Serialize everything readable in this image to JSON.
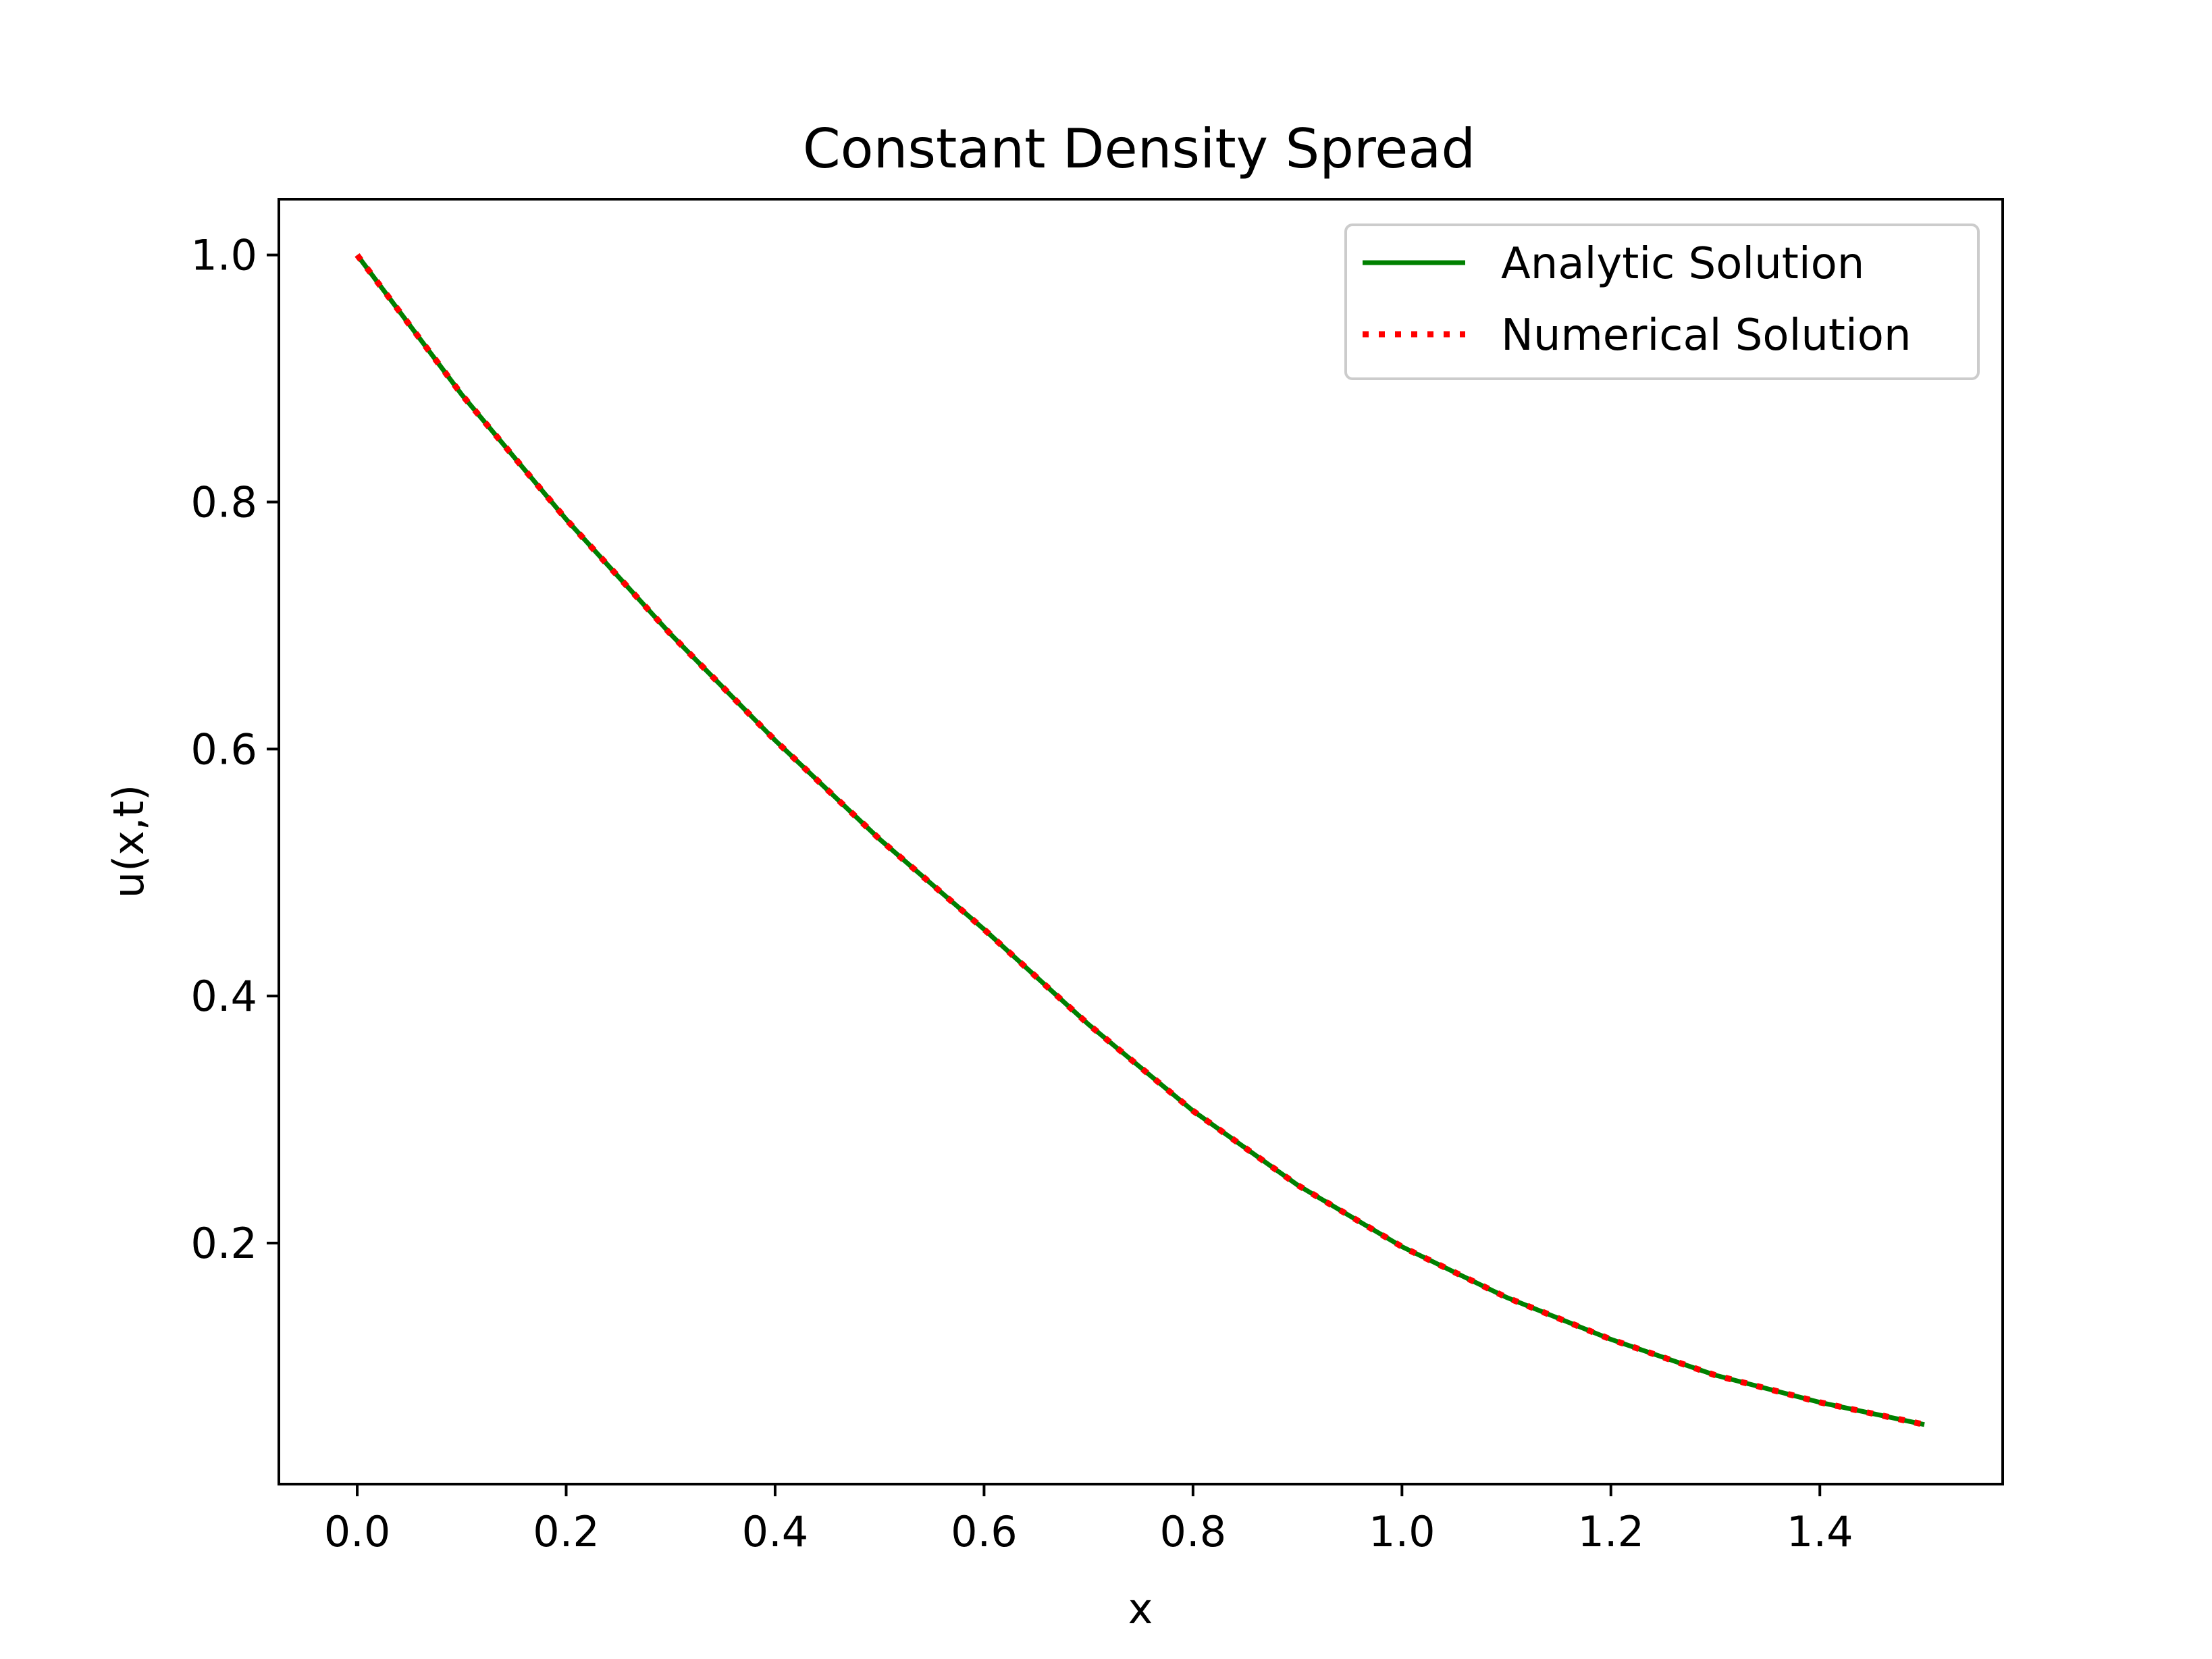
{
  "chart_data": {
    "type": "line",
    "title": "Constant Density Spread",
    "xlabel": "x",
    "ylabel": "u(x,t)",
    "xlim": [
      -0.075,
      1.575
    ],
    "ylim": [
      0.0048,
      1.0452
    ],
    "x_ticks": [
      "0.0",
      "0.2",
      "0.4",
      "0.6",
      "0.8",
      "1.0",
      "1.2",
      "1.4"
    ],
    "y_ticks": [
      "0.2",
      "0.4",
      "0.6",
      "0.8",
      "1.0"
    ],
    "grid": false,
    "legend_position": "top-right",
    "series": [
      {
        "name": "Analytic Solution",
        "color": "#008000",
        "line_style": "solid",
        "x": [
          0.0,
          0.1,
          0.2,
          0.3,
          0.4,
          0.5,
          0.6,
          0.7,
          0.8,
          0.9,
          1.0,
          1.1,
          1.2,
          1.3,
          1.4,
          1.5
        ],
        "y": [
          1.0,
          0.887,
          0.786,
          0.693,
          0.607,
          0.527,
          0.454,
          0.377,
          0.307,
          0.247,
          0.197,
          0.156,
          0.122,
          0.093,
          0.071,
          0.053
        ]
      },
      {
        "name": "Numerical Solution",
        "color": "#ff0000",
        "line_style": "dotted",
        "x": [
          0.0,
          0.1,
          0.2,
          0.3,
          0.4,
          0.5,
          0.6,
          0.7,
          0.8,
          0.9,
          1.0,
          1.1,
          1.2,
          1.3,
          1.4,
          1.5
        ],
        "y": [
          1.0,
          0.887,
          0.786,
          0.693,
          0.607,
          0.527,
          0.454,
          0.377,
          0.307,
          0.247,
          0.197,
          0.156,
          0.122,
          0.093,
          0.071,
          0.053
        ]
      }
    ]
  }
}
